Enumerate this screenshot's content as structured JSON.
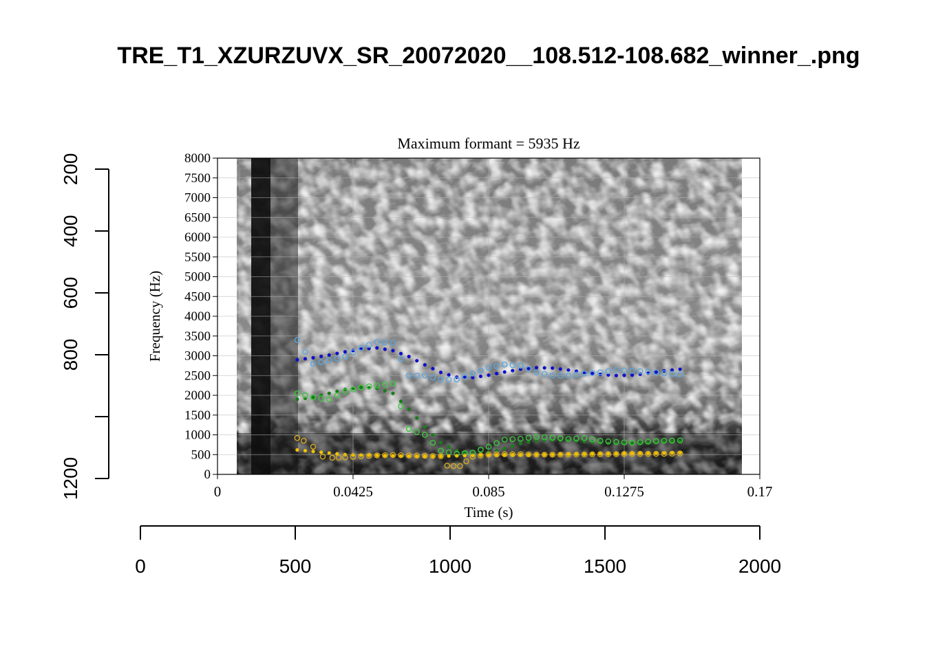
{
  "page": {
    "title": "TRE_T1_XZURZUVX_SR_20072020__108.512-108.682_winner_.png"
  },
  "outer_axes": {
    "x_ticks": [
      "0",
      "500",
      "1000",
      "1500",
      "2000"
    ],
    "y_ticks": [
      "200",
      "400",
      "600",
      "800",
      "1200"
    ]
  },
  "chart_data": {
    "type": "scatter",
    "title": "Maximum formant = 5935 Hz",
    "xlabel": "Time (s)",
    "ylabel": "Frequency (Hz)",
    "xlim": [
      0,
      0.17
    ],
    "ylim": [
      0,
      8000
    ],
    "x_tick_labels": [
      "0",
      "0.0425",
      "0.085",
      "0.1275",
      "0.17"
    ],
    "y_tick_labels": [
      "0",
      "500",
      "1000",
      "1500",
      "2000",
      "2500",
      "3000",
      "3500",
      "4000",
      "4500",
      "5000",
      "5500",
      "6000",
      "6500",
      "7000",
      "7500",
      "8000"
    ],
    "grid": true,
    "background": "grayscale spectrogram",
    "series": [
      {
        "color": "#1010c8",
        "marker": "filled",
        "x": [
          0.025,
          0.03,
          0.035,
          0.04,
          0.045,
          0.05,
          0.055,
          0.06,
          0.065,
          0.07,
          0.075,
          0.08,
          0.085,
          0.09,
          0.095,
          0.1,
          0.105,
          0.11,
          0.115,
          0.12,
          0.125,
          0.13,
          0.135,
          0.14,
          0.145
        ],
        "y": [
          2900,
          2950,
          3020,
          3100,
          3170,
          3200,
          3130,
          2980,
          2770,
          2580,
          2460,
          2450,
          2510,
          2590,
          2660,
          2700,
          2690,
          2640,
          2580,
          2530,
          2500,
          2510,
          2560,
          2620,
          2660
        ]
      },
      {
        "color": "#5aa6e0",
        "marker": "open",
        "x": [
          0.025,
          0.03,
          0.035,
          0.04,
          0.045,
          0.05,
          0.055,
          0.06,
          0.065,
          0.07,
          0.075,
          0.08,
          0.085,
          0.09,
          0.095,
          0.1,
          0.105,
          0.11,
          0.115,
          0.12,
          0.125,
          0.13,
          0.135,
          0.14,
          0.145
        ],
        "y": [
          3400,
          2800,
          2880,
          2980,
          3200,
          3350,
          3330,
          2500,
          2500,
          2400,
          2400,
          2550,
          2700,
          2780,
          2750,
          2580,
          2500,
          2500,
          2550,
          2580,
          2640,
          2620,
          2600,
          2560,
          2520
        ]
      },
      {
        "color": "#1a7d1a",
        "marker": "filled",
        "x": [
          0.025,
          0.03,
          0.035,
          0.04,
          0.045,
          0.05,
          0.055,
          0.06,
          0.065,
          0.07,
          0.075,
          0.08,
          0.085,
          0.09,
          0.095,
          0.1,
          0.105,
          0.11,
          0.115,
          0.12,
          0.125,
          0.13,
          0.135,
          0.14,
          0.145
        ],
        "y": [
          1900,
          1950,
          2050,
          2150,
          2200,
          2180,
          2050,
          1650,
          1200,
          800,
          600,
          520,
          560,
          650,
          780,
          850,
          870,
          860,
          830,
          800,
          780,
          790,
          800,
          820,
          840
        ]
      },
      {
        "color": "#3cc83c",
        "marker": "open",
        "x": [
          0.025,
          0.03,
          0.035,
          0.04,
          0.045,
          0.05,
          0.055,
          0.06,
          0.065,
          0.07,
          0.075,
          0.08,
          0.085,
          0.09,
          0.095,
          0.1,
          0.105,
          0.11,
          0.115,
          0.12,
          0.125,
          0.13,
          0.135,
          0.14,
          0.145
        ],
        "y": [
          2050,
          1950,
          1900,
          2100,
          2200,
          2250,
          2300,
          1150,
          1000,
          600,
          520,
          550,
          700,
          880,
          900,
          950,
          930,
          900,
          920,
          850,
          820,
          800,
          830,
          850,
          860
        ]
      },
      {
        "color": "#f2c200",
        "marker": "filled",
        "x": [
          0.025,
          0.03,
          0.035,
          0.04,
          0.045,
          0.05,
          0.055,
          0.06,
          0.065,
          0.07,
          0.075,
          0.08,
          0.085,
          0.09,
          0.095,
          0.1,
          0.105,
          0.11,
          0.115,
          0.12,
          0.125,
          0.13,
          0.135,
          0.14,
          0.145
        ],
        "y": [
          620,
          580,
          540,
          500,
          490,
          480,
          470,
          460,
          460,
          460,
          470,
          480,
          490,
          500,
          500,
          500,
          500,
          510,
          510,
          520,
          520,
          530,
          530,
          540,
          550
        ]
      },
      {
        "color": "#d4a820",
        "marker": "open",
        "x": [
          0.025,
          0.027,
          0.03,
          0.033,
          0.036,
          0.04,
          0.045,
          0.05,
          0.055,
          0.06,
          0.065,
          0.07,
          0.072,
          0.074,
          0.076,
          0.08,
          0.085,
          0.09,
          0.095,
          0.1,
          0.11,
          0.12,
          0.13,
          0.14,
          0.145
        ],
        "y": [
          920,
          850,
          700,
          450,
          420,
          430,
          460,
          480,
          490,
          480,
          470,
          460,
          220,
          210,
          210,
          450,
          500,
          510,
          510,
          500,
          500,
          510,
          520,
          520,
          530
        ]
      }
    ]
  }
}
